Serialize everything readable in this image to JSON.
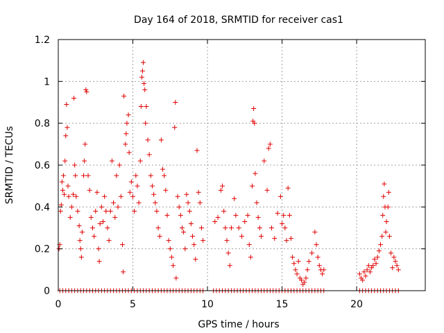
{
  "chart_data": {
    "type": "scatter",
    "title": "Day 164 of 2018, SRMTID for receiver cas1",
    "xlabel": "GPS time / hours",
    "ylabel": "SRMTID / TECUs",
    "xlim": [
      0,
      24.6
    ],
    "ylim": [
      0,
      1.2
    ],
    "xticks": [
      0,
      5,
      10,
      15,
      20
    ],
    "yticks": [
      0,
      0.2,
      0.4,
      0.6,
      0.8,
      1,
      1.2
    ],
    "ytick_labels": [
      "0",
      "0.2",
      "0.4",
      "0.6",
      "0.8",
      "1",
      "1.2"
    ],
    "grid": true,
    "series": [
      {
        "name": "SRMTID",
        "marker": "+",
        "color": "#e00000",
        "points": [
          [
            0.05,
            0.2
          ],
          [
            0.1,
            0.22
          ],
          [
            0.15,
            0.38
          ],
          [
            0.2,
            0.41
          ],
          [
            0.25,
            0.52
          ],
          [
            0.3,
            0.48
          ],
          [
            0.35,
            0.55
          ],
          [
            0.4,
            0.46
          ],
          [
            0.45,
            0.62
          ],
          [
            0.5,
            0.74
          ],
          [
            0.55,
            0.89
          ],
          [
            0.6,
            0.78
          ],
          [
            0.65,
            0.5
          ],
          [
            0.7,
            0.45
          ],
          [
            0.8,
            0.35
          ],
          [
            0.9,
            0.4
          ],
          [
            1.0,
            0.46
          ],
          [
            1.05,
            0.92
          ],
          [
            1.1,
            0.6
          ],
          [
            1.15,
            0.55
          ],
          [
            1.2,
            0.45
          ],
          [
            1.3,
            0.38
          ],
          [
            1.4,
            0.31
          ],
          [
            1.45,
            0.24
          ],
          [
            1.5,
            0.2
          ],
          [
            1.55,
            0.16
          ],
          [
            1.6,
            0.28
          ],
          [
            1.7,
            0.55
          ],
          [
            1.75,
            0.62
          ],
          [
            1.8,
            0.7
          ],
          [
            1.85,
            0.96
          ],
          [
            1.9,
            0.95
          ],
          [
            2.0,
            0.55
          ],
          [
            2.1,
            0.48
          ],
          [
            2.2,
            0.35
          ],
          [
            2.3,
            0.3
          ],
          [
            2.4,
            0.26
          ],
          [
            2.5,
            0.38
          ],
          [
            2.6,
            0.47
          ],
          [
            2.7,
            0.2
          ],
          [
            2.75,
            0.14
          ],
          [
            2.8,
            0.32
          ],
          [
            2.9,
            0.4
          ],
          [
            3.0,
            0.33
          ],
          [
            3.1,
            0.45
          ],
          [
            3.2,
            0.38
          ],
          [
            3.3,
            0.3
          ],
          [
            3.4,
            0.24
          ],
          [
            3.5,
            0.38
          ],
          [
            3.6,
            0.62
          ],
          [
            3.7,
            0.42
          ],
          [
            3.8,
            0.35
          ],
          [
            3.9,
            0.55
          ],
          [
            4.0,
            0.4
          ],
          [
            4.1,
            0.6
          ],
          [
            4.2,
            0.45
          ],
          [
            4.3,
            0.22
          ],
          [
            4.35,
            0.09
          ],
          [
            4.4,
            0.93
          ],
          [
            4.5,
            0.7
          ],
          [
            4.55,
            0.75
          ],
          [
            4.6,
            0.8
          ],
          [
            4.7,
            0.84
          ],
          [
            4.75,
            0.66
          ],
          [
            4.8,
            0.47
          ],
          [
            4.9,
            0.52
          ],
          [
            5.0,
            0.45
          ],
          [
            5.1,
            0.38
          ],
          [
            5.2,
            0.55
          ],
          [
            5.3,
            0.5
          ],
          [
            5.4,
            0.42
          ],
          [
            5.5,
            0.62
          ],
          [
            5.55,
            0.88
          ],
          [
            5.6,
            1.02
          ],
          [
            5.65,
            1.05
          ],
          [
            5.7,
            1.09
          ],
          [
            5.75,
            0.99
          ],
          [
            5.8,
            0.96
          ],
          [
            5.85,
            0.8
          ],
          [
            5.9,
            0.88
          ],
          [
            6.0,
            0.72
          ],
          [
            6.1,
            0.65
          ],
          [
            6.2,
            0.55
          ],
          [
            6.3,
            0.5
          ],
          [
            6.4,
            0.46
          ],
          [
            6.5,
            0.42
          ],
          [
            6.6,
            0.38
          ],
          [
            6.7,
            0.3
          ],
          [
            6.8,
            0.26
          ],
          [
            6.9,
            0.72
          ],
          [
            7.0,
            0.58
          ],
          [
            7.1,
            0.55
          ],
          [
            7.2,
            0.48
          ],
          [
            7.3,
            0.36
          ],
          [
            7.4,
            0.24
          ],
          [
            7.5,
            0.2
          ],
          [
            7.6,
            0.16
          ],
          [
            7.7,
            0.12
          ],
          [
            7.8,
            0.78
          ],
          [
            7.85,
            0.9
          ],
          [
            7.9,
            0.06
          ],
          [
            8.0,
            0.45
          ],
          [
            8.1,
            0.4
          ],
          [
            8.2,
            0.36
          ],
          [
            8.3,
            0.3
          ],
          [
            8.4,
            0.28
          ],
          [
            8.5,
            0.2
          ],
          [
            8.6,
            0.46
          ],
          [
            8.7,
            0.42
          ],
          [
            8.8,
            0.38
          ],
          [
            8.9,
            0.32
          ],
          [
            9.0,
            0.26
          ],
          [
            9.1,
            0.22
          ],
          [
            9.2,
            0.15
          ],
          [
            9.3,
            0.67
          ],
          [
            9.4,
            0.47
          ],
          [
            9.5,
            0.42
          ],
          [
            9.6,
            0.3
          ],
          [
            9.7,
            0.24
          ],
          [
            10.5,
            0.33
          ],
          [
            10.7,
            0.35
          ],
          [
            10.9,
            0.48
          ],
          [
            11.0,
            0.5
          ],
          [
            11.1,
            0.38
          ],
          [
            11.2,
            0.3
          ],
          [
            11.3,
            0.24
          ],
          [
            11.4,
            0.18
          ],
          [
            11.5,
            0.12
          ],
          [
            11.6,
            0.3
          ],
          [
            11.8,
            0.44
          ],
          [
            11.9,
            0.36
          ],
          [
            12.1,
            0.3
          ],
          [
            12.3,
            0.26
          ],
          [
            12.5,
            0.33
          ],
          [
            12.7,
            0.36
          ],
          [
            12.8,
            0.22
          ],
          [
            12.9,
            0.16
          ],
          [
            13.0,
            0.5
          ],
          [
            13.05,
            0.81
          ],
          [
            13.1,
            0.87
          ],
          [
            13.15,
            0.8
          ],
          [
            13.2,
            0.56
          ],
          [
            13.3,
            0.42
          ],
          [
            13.4,
            0.35
          ],
          [
            13.5,
            0.3
          ],
          [
            13.6,
            0.26
          ],
          [
            13.8,
            0.62
          ],
          [
            14.0,
            0.48
          ],
          [
            14.1,
            0.68
          ],
          [
            14.2,
            0.7
          ],
          [
            14.3,
            0.3
          ],
          [
            14.5,
            0.25
          ],
          [
            14.7,
            0.37
          ],
          [
            14.9,
            0.45
          ],
          [
            15.0,
            0.32
          ],
          [
            15.1,
            0.36
          ],
          [
            15.2,
            0.3
          ],
          [
            15.3,
            0.24
          ],
          [
            15.4,
            0.49
          ],
          [
            15.5,
            0.36
          ],
          [
            15.6,
            0.25
          ],
          [
            15.7,
            0.16
          ],
          [
            15.8,
            0.13
          ],
          [
            15.9,
            0.1
          ],
          [
            16.0,
            0.08
          ],
          [
            16.1,
            0.14
          ],
          [
            16.2,
            0.06
          ],
          [
            16.3,
            0.05
          ],
          [
            16.4,
            0.03
          ],
          [
            16.5,
            0.04
          ],
          [
            16.6,
            0.06
          ],
          [
            16.7,
            0.1
          ],
          [
            16.8,
            0.14
          ],
          [
            17.0,
            0.18
          ],
          [
            17.2,
            0.28
          ],
          [
            17.3,
            0.22
          ],
          [
            17.4,
            0.16
          ],
          [
            17.5,
            0.12
          ],
          [
            17.6,
            0.1
          ],
          [
            17.7,
            0.08
          ],
          [
            17.8,
            0.1
          ],
          [
            20.2,
            0.08
          ],
          [
            20.3,
            0.06
          ],
          [
            20.4,
            0.05
          ],
          [
            20.5,
            0.09
          ],
          [
            20.6,
            0.07
          ],
          [
            20.7,
            0.1
          ],
          [
            20.8,
            0.12
          ],
          [
            20.9,
            0.09
          ],
          [
            21.0,
            0.11
          ],
          [
            21.1,
            0.12
          ],
          [
            21.2,
            0.15
          ],
          [
            21.3,
            0.13
          ],
          [
            21.4,
            0.16
          ],
          [
            21.5,
            0.19
          ],
          [
            21.6,
            0.22
          ],
          [
            21.7,
            0.26
          ],
          [
            21.75,
            0.36
          ],
          [
            21.8,
            0.45
          ],
          [
            21.85,
            0.51
          ],
          [
            21.9,
            0.4
          ],
          [
            21.95,
            0.28
          ],
          [
            22.0,
            0.33
          ],
          [
            22.1,
            0.4
          ],
          [
            22.15,
            0.47
          ],
          [
            22.2,
            0.26
          ],
          [
            22.3,
            0.18
          ],
          [
            22.4,
            0.11
          ],
          [
            22.5,
            0.16
          ],
          [
            22.6,
            0.14
          ],
          [
            22.7,
            0.12
          ],
          [
            22.8,
            0.1
          ]
        ]
      }
    ]
  }
}
